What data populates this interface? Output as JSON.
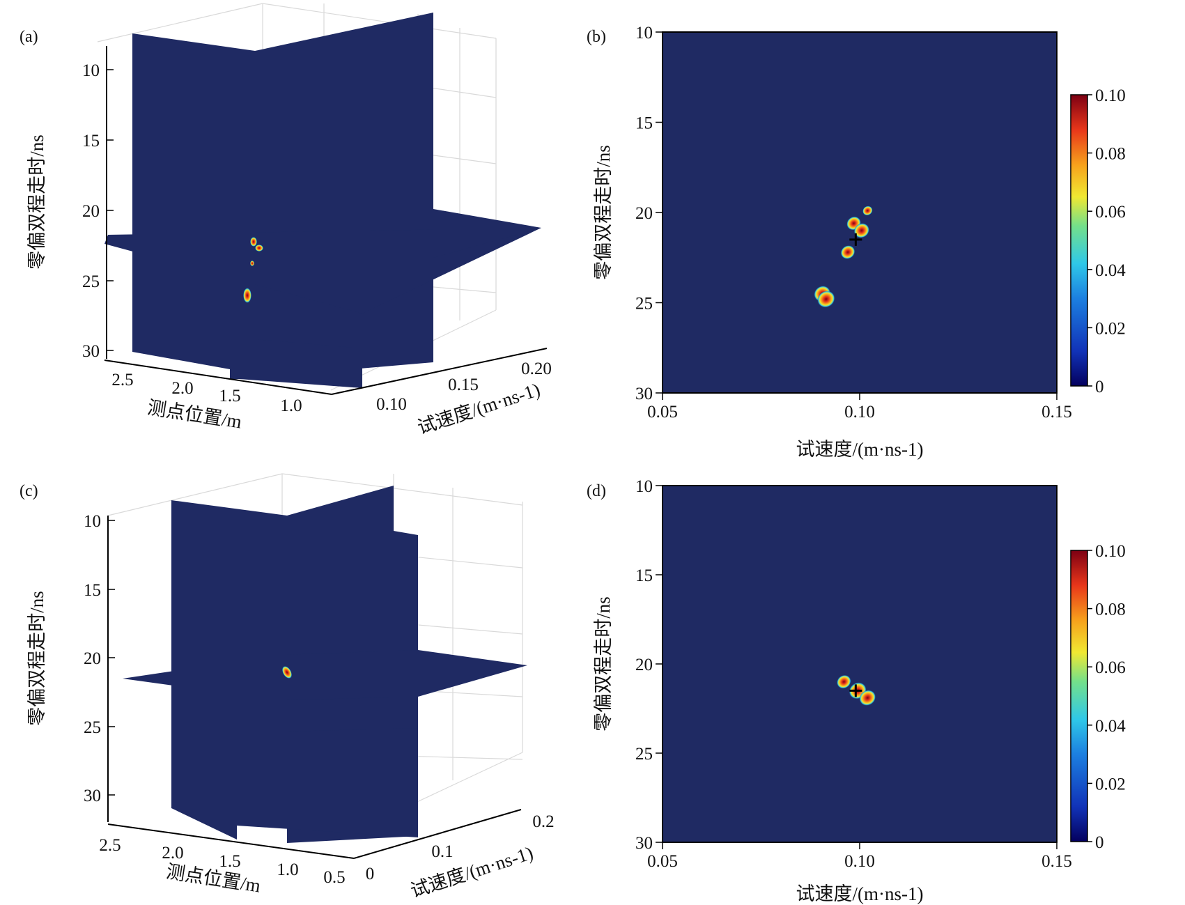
{
  "figure": {
    "colors": {
      "background_plane": "#1f2a63",
      "axis": "#000000",
      "grid": "#d9d9d9",
      "colormap": [
        "#04005e",
        "#1133b8",
        "#1c7fe0",
        "#2fc8e8",
        "#74e08a",
        "#f0e832",
        "#f7a11c",
        "#e8361a",
        "#7d0013"
      ]
    },
    "panels": [
      {
        "id": "a",
        "label": "(a)",
        "chart_data": {
          "type": "heatmap",
          "view": "3d-slices",
          "zlabel": "零偏双程走时/ns",
          "xlabel": "测点位置/m",
          "ylabel": "试速度/(m·ns-1)",
          "z_ticks": [
            "10",
            "15",
            "20",
            "25",
            "30"
          ],
          "x_ticks": [
            "2.5",
            "2.0",
            "1.5",
            "1.0"
          ],
          "y_ticks": [
            "0.10",
            "0.15",
            "0.20"
          ],
          "zlim": [
            10,
            30
          ],
          "grid": true,
          "hotspots": [
            {
              "z": 22.0,
              "value": 0.06
            },
            {
              "z": 22.5,
              "value": 0.09
            },
            {
              "z": 23.5,
              "value": 0.04
            },
            {
              "z": 25.8,
              "value": 0.09
            }
          ]
        }
      },
      {
        "id": "b",
        "label": "(b)",
        "chart_data": {
          "type": "heatmap",
          "xlabel": "试速度/(m·ns-1)",
          "ylabel": "零偏双程走时/ns",
          "xlim": [
            0.05,
            0.15
          ],
          "ylim": [
            10,
            30
          ],
          "x_ticks": [
            "0.05",
            "0.10",
            "0.15"
          ],
          "y_ticks": [
            "10",
            "15",
            "20",
            "25",
            "30"
          ],
          "colorbar": {
            "min": 0,
            "max": 0.1,
            "ticks": [
              "0.10",
              "0.08",
              "0.06",
              "0.04",
              "0.02",
              "0"
            ]
          },
          "hotspots": [
            {
              "x": 0.0985,
              "y": 20.6,
              "value": 0.07
            },
            {
              "x": 0.1005,
              "y": 21.0,
              "value": 0.08
            },
            {
              "x": 0.102,
              "y": 19.9,
              "value": 0.03
            },
            {
              "x": 0.097,
              "y": 22.2,
              "value": 0.07
            },
            {
              "x": 0.0905,
              "y": 24.5,
              "value": 0.09
            },
            {
              "x": 0.0915,
              "y": 24.8,
              "value": 0.1
            }
          ],
          "marker": {
            "x": 0.099,
            "y": 21.5
          }
        }
      },
      {
        "id": "c",
        "label": "(c)",
        "chart_data": {
          "type": "heatmap",
          "view": "3d-slices",
          "zlabel": "零偏双程走时/ns",
          "xlabel": "测点位置/m",
          "ylabel": "试速度/(m·ns-1)",
          "z_ticks": [
            "10",
            "15",
            "20",
            "25",
            "30"
          ],
          "x_ticks": [
            "2.5",
            "2.0",
            "1.5",
            "1.0",
            "0.5"
          ],
          "y_ticks": [
            "0",
            "0.1",
            "0.2"
          ],
          "zlim": [
            10,
            30
          ],
          "grid": true,
          "hotspots": [
            {
              "z": 21.3,
              "value": 0.09
            }
          ]
        }
      },
      {
        "id": "d",
        "label": "(d)",
        "chart_data": {
          "type": "heatmap",
          "xlabel": "试速度/(m·ns-1)",
          "ylabel": "零偏双程走时/ns",
          "xlim": [
            0.05,
            0.15
          ],
          "ylim": [
            10,
            30
          ],
          "x_ticks": [
            "0.05",
            "0.10",
            "0.15"
          ],
          "y_ticks": [
            "10",
            "15",
            "20",
            "25",
            "30"
          ],
          "colorbar": {
            "min": 0,
            "max": 0.1,
            "ticks": [
              "0.10",
              "0.08",
              "0.06",
              "0.04",
              "0.02",
              "0"
            ]
          },
          "hotspots": [
            {
              "x": 0.096,
              "y": 21.0,
              "value": 0.07
            },
            {
              "x": 0.0995,
              "y": 21.5,
              "value": 0.1
            },
            {
              "x": 0.102,
              "y": 21.9,
              "value": 0.09
            }
          ],
          "marker": {
            "x": 0.099,
            "y": 21.5
          }
        }
      }
    ]
  }
}
